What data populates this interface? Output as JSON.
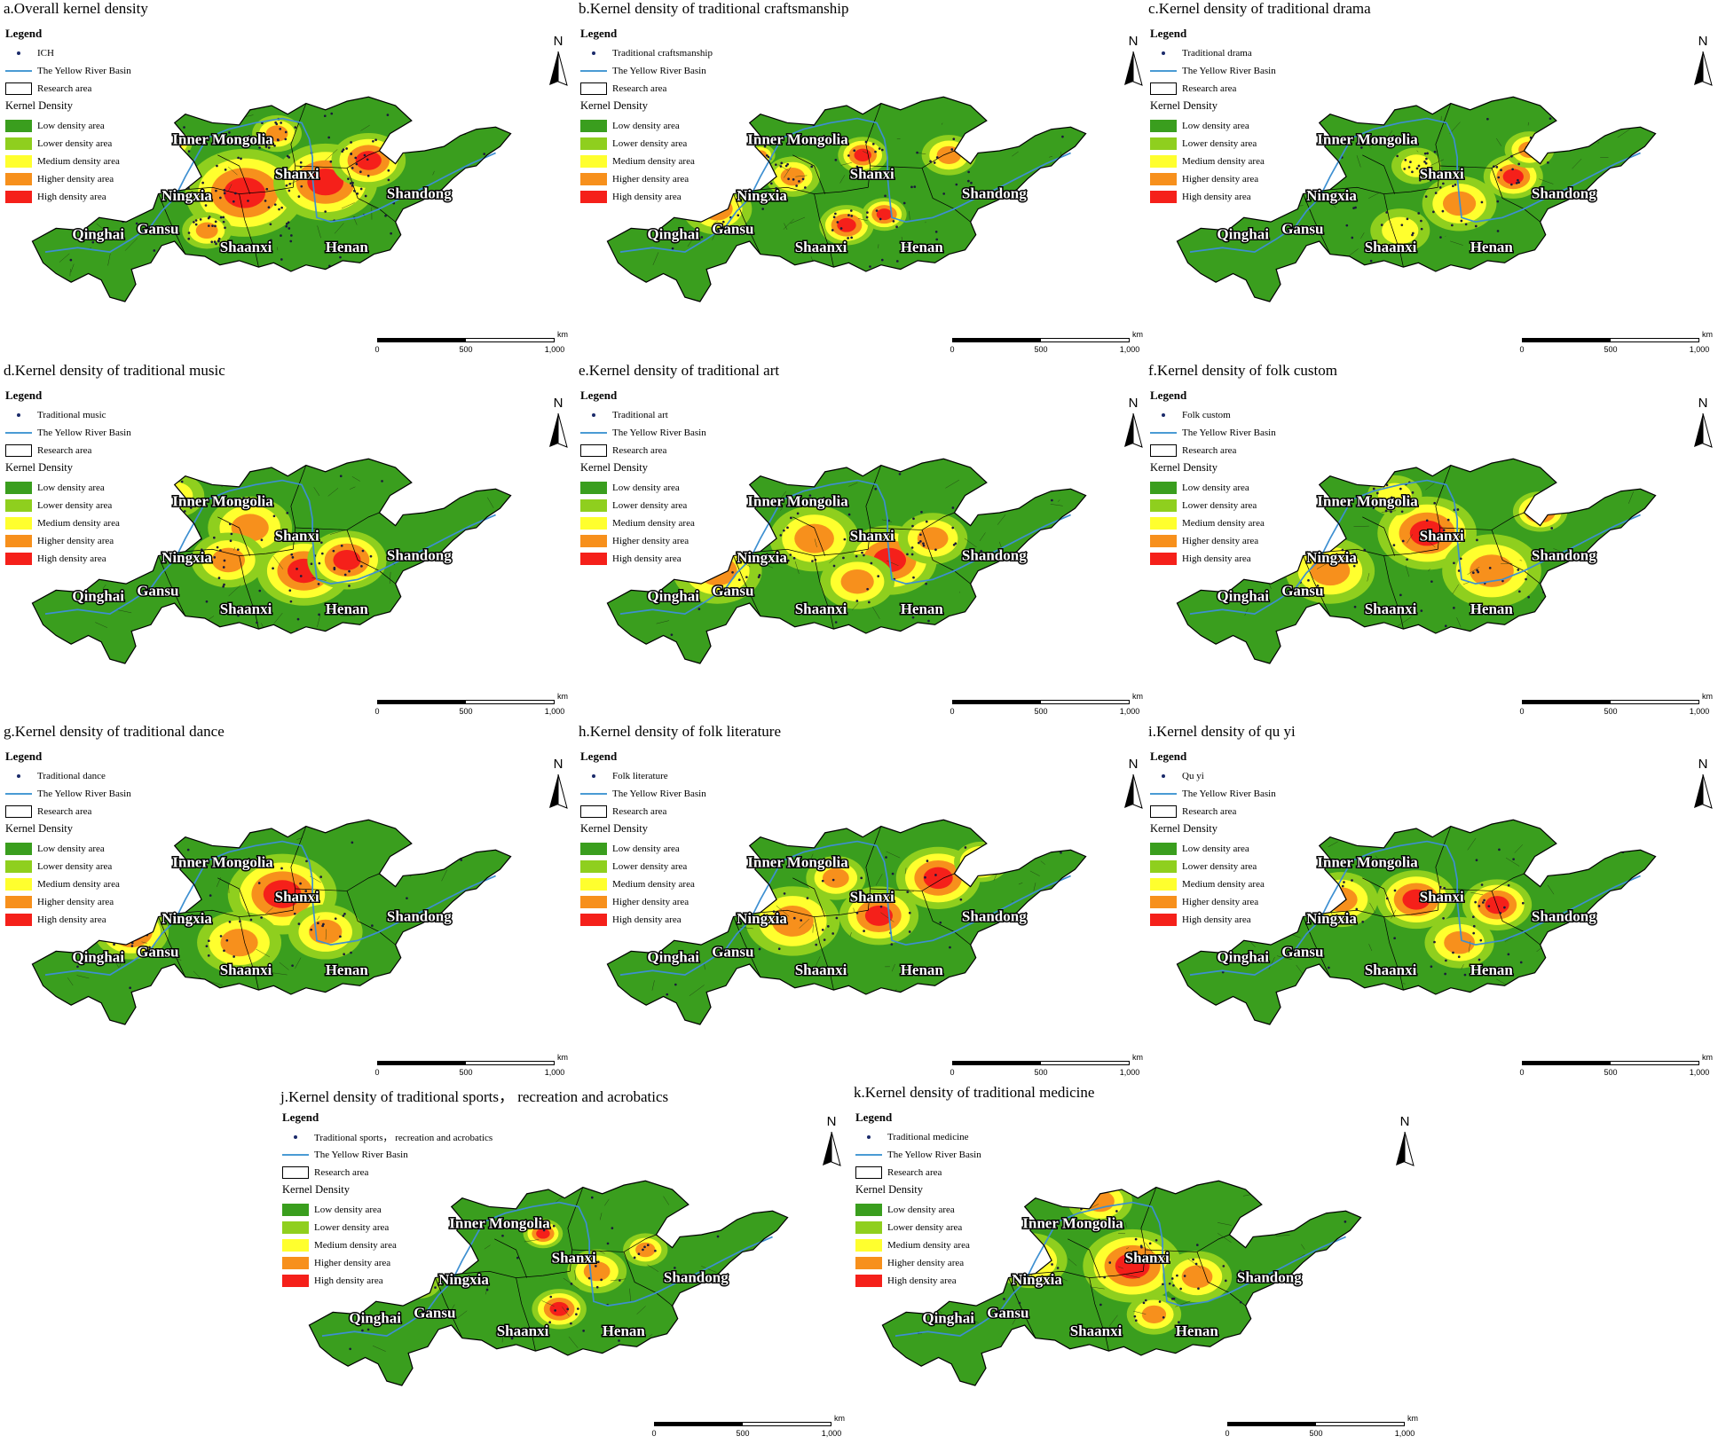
{
  "legend_text": {
    "heading": "Legend",
    "basin": "The Yellow River Basin",
    "research": "Research area",
    "kd_heading": "Kernel Density",
    "classes": [
      "Low density area",
      "Lower density area",
      "Medium density area",
      "Higher density area",
      "High density area"
    ]
  },
  "class_colors": [
    "#3a9e1e",
    "#8fcf1e",
    "#ffff2e",
    "#f7901c",
    "#f5201a"
  ],
  "north_label": "N",
  "scale": {
    "unit": "km",
    "ticks": [
      "0",
      "500",
      "1,000"
    ]
  },
  "provinces": [
    "Inner Mongolia",
    "Ningxia",
    "Gansu",
    "Qinghai",
    "Shaanxi",
    "Shanxi",
    "Henan",
    "Shandong"
  ],
  "panels": [
    {
      "title": "a.Overall kernel density",
      "point_label": "ICH"
    },
    {
      "title": "b.Kernel density of traditional craftsmanship",
      "point_label": "Traditional craftsmanship"
    },
    {
      "title": "c.Kernel density of traditional drama",
      "point_label": "Traditional drama"
    },
    {
      "title": "d.Kernel density of traditional music",
      "point_label": "Traditional music"
    },
    {
      "title": "e.Kernel density of traditional art",
      "point_label": "Traditional art"
    },
    {
      "title": "f.Kernel density of folk custom",
      "point_label": "Folk custom"
    },
    {
      "title": "g.Kernel density of traditional dance",
      "point_label": "Traditional dance"
    },
    {
      "title": "h.Kernel density of folk literature",
      "point_label": "Folk literature"
    },
    {
      "title": "i.Kernel density of qu yi",
      "point_label": "Qu yi"
    },
    {
      "title": "j.Kernel density of traditional sports， recreation and acrobatics",
      "point_label": "Traditional sports， recreation and acrobatics"
    },
    {
      "title": "k.Kernel density of traditional medicine",
      "point_label": "Traditional medicine"
    }
  ]
}
